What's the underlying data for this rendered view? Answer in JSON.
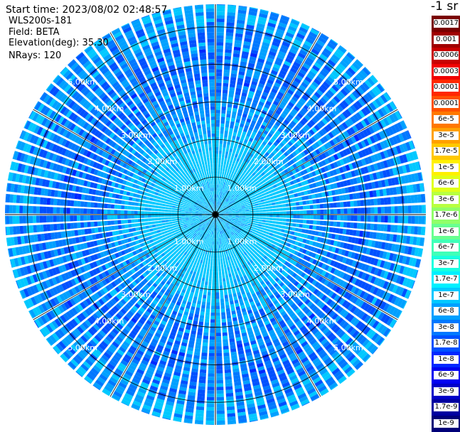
{
  "info": {
    "start_time": "Start time: 2023/08/02 02:48:57",
    "instrument": "WLS200s-181",
    "field": "Field: BETA",
    "elevation": "Elevation(deg): 35.30",
    "nrays": "NRays: 120"
  },
  "colorbar": {
    "title": "-1 sr",
    "labels": [
      "0.0017",
      "0.001",
      "0.0006",
      "0.0003",
      "0.00017",
      "0.0001",
      "6e-5",
      "3e-5",
      "1.7e-5",
      "1e-5",
      "6e-6",
      "3e-6",
      "1.7e-6",
      "1e-6",
      "6e-7",
      "3e-7",
      "1.7e-7",
      "1e-7",
      "6e-8",
      "3e-8",
      "1.7e-8",
      "1e-8",
      "6e-9",
      "3e-9",
      "1.7e-9",
      "1e-9"
    ],
    "colors": [
      "#7a0000",
      "#a00000",
      "#c80000",
      "#f00000",
      "#ff2800",
      "#ff5000",
      "#ff7800",
      "#ffa000",
      "#ffc800",
      "#fff000",
      "#e0ff18",
      "#b8ff40",
      "#90ff68",
      "#68ff90",
      "#40ffb8",
      "#18ffe0",
      "#00f0ff",
      "#00c8ff",
      "#00a0ff",
      "#0078ff",
      "#0050ff",
      "#0028ff",
      "#0000f0",
      "#0000c8",
      "#0000a0",
      "#000078"
    ]
  },
  "chart_data": {
    "type": "heatmap",
    "subtype": "polar PPI scan",
    "field": "BETA",
    "units": "-1 sr",
    "nrays": 120,
    "elevation_deg": 35.3,
    "max_range_km": 5.6,
    "range_rings_km": [
      1,
      2,
      3,
      4,
      5
    ],
    "ring_labels": [
      "1.00km",
      "2.00km",
      "3.00km",
      "4.00km",
      "5.00km"
    ],
    "azimuth_lines_deg": [
      0,
      30,
      60,
      90,
      120,
      150,
      180,
      210,
      240,
      270,
      300,
      330
    ],
    "value_profile": [
      {
        "range_km": 0.5,
        "dominant_value": "1e-7"
      },
      {
        "range_km": 1.0,
        "dominant_value": "1.7e-7"
      },
      {
        "range_km": 1.5,
        "dominant_value": "1.7e-7"
      },
      {
        "range_km": 2.5,
        "dominant_value": "6e-8"
      },
      {
        "range_km": 3.5,
        "dominant_value": "3e-8"
      },
      {
        "range_km": 4.5,
        "dominant_value": "3e-8"
      },
      {
        "range_km": 5.5,
        "dominant_value": "6e-8"
      }
    ],
    "colormap": "jet",
    "grid": true
  }
}
